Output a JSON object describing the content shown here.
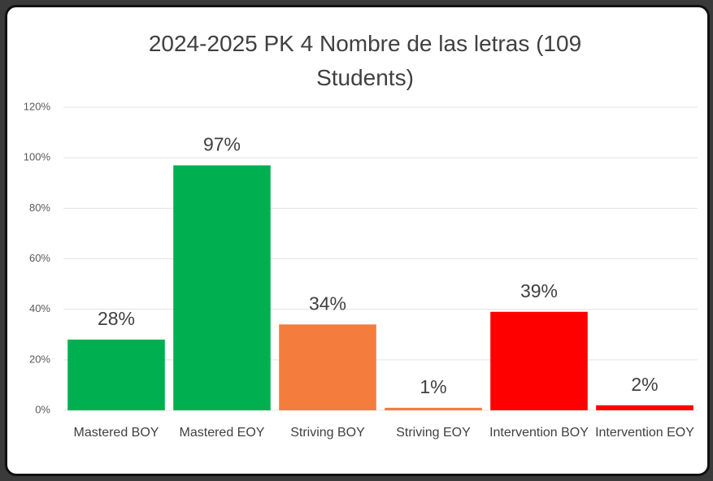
{
  "chart_data": {
    "type": "bar",
    "title": "2024-2025 PK 4 Nombre de las letras (109 Students)",
    "categories": [
      "Mastered BOY",
      "Mastered EOY",
      "Striving BOY",
      "Striving EOY",
      "Intervention BOY",
      "Intervention EOY"
    ],
    "values": [
      28,
      97,
      34,
      1,
      39,
      2
    ],
    "value_labels": [
      "28%",
      "97%",
      "34%",
      "1%",
      "39%",
      "2%"
    ],
    "colors": [
      "#00b050",
      "#00b050",
      "#f47c3c",
      "#f47c3c",
      "#ff0000",
      "#ff0000"
    ],
    "ylim": [
      0,
      120
    ],
    "yticks": [
      {
        "value": 0,
        "label": "0%"
      },
      {
        "value": 20,
        "label": "20%"
      },
      {
        "value": 40,
        "label": "40%"
      },
      {
        "value": 60,
        "label": "60%"
      },
      {
        "value": 80,
        "label": "80%"
      },
      {
        "value": 100,
        "label": "100%"
      },
      {
        "value": 120,
        "label": "120%"
      }
    ],
    "grid": true
  }
}
